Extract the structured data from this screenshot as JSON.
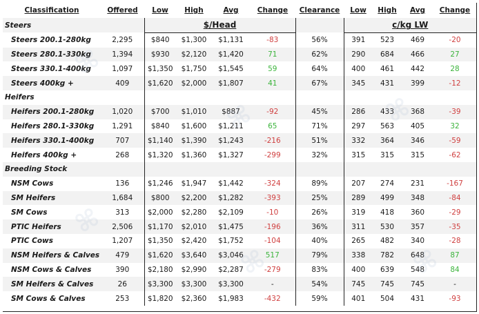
{
  "headers": {
    "classification": "Classification",
    "offered": "Offered",
    "low": "Low",
    "high": "High",
    "avg": "Avg",
    "change": "Change",
    "clearance": "Clearance",
    "low2": "Low",
    "high2": "High",
    "avg2": "Avg",
    "change2": "Change"
  },
  "units": {
    "head": "$/Head",
    "kg": "c/kg LW"
  },
  "sections": [
    {
      "title": "Steers",
      "rows": [
        {
          "name": "Steers 200.1-280kg",
          "offered": "2,295",
          "low": "$840",
          "high": "$1,300",
          "avg": "$1,131",
          "change": "-83",
          "clearance": "56%",
          "low2": "391",
          "high2": "523",
          "avg2": "469",
          "change2": "-20"
        },
        {
          "name": "Steers 280.1-330kg",
          "offered": "1,394",
          "low": "$930",
          "high": "$2,120",
          "avg": "$1,420",
          "change": "71",
          "clearance": "62%",
          "low2": "290",
          "high2": "684",
          "avg2": "466",
          "change2": "27"
        },
        {
          "name": "Steers 330.1-400kg",
          "offered": "1,097",
          "low": "$1,350",
          "high": "$1,750",
          "avg": "$1,545",
          "change": "59",
          "clearance": "64%",
          "low2": "400",
          "high2": "461",
          "avg2": "442",
          "change2": "28"
        },
        {
          "name": "Steers 400kg +",
          "offered": "409",
          "low": "$1,620",
          "high": "$2,000",
          "avg": "$1,807",
          "change": "41",
          "clearance": "67%",
          "low2": "345",
          "high2": "431",
          "avg2": "399",
          "change2": "-12"
        }
      ]
    },
    {
      "title": "Heifers",
      "rows": [
        {
          "name": "Heifers 200.1-280kg",
          "offered": "1,020",
          "low": "$700",
          "high": "$1,010",
          "avg": "$887",
          "change": "-92",
          "clearance": "45%",
          "low2": "286",
          "high2": "433",
          "avg2": "368",
          "change2": "-39"
        },
        {
          "name": "Heifers 280.1-330kg",
          "offered": "1,291",
          "low": "$840",
          "high": "$1,600",
          "avg": "$1,211",
          "change": "65",
          "clearance": "71%",
          "low2": "297",
          "high2": "563",
          "avg2": "405",
          "change2": "32"
        },
        {
          "name": "Heifers 330.1-400kg",
          "offered": "707",
          "low": "$1,140",
          "high": "$1,390",
          "avg": "$1,243",
          "change": "-216",
          "clearance": "51%",
          "low2": "332",
          "high2": "364",
          "avg2": "346",
          "change2": "-59"
        },
        {
          "name": "Heifers 400kg +",
          "offered": "268",
          "low": "$1,320",
          "high": "$1,360",
          "avg": "$1,327",
          "change": "-299",
          "clearance": "32%",
          "low2": "315",
          "high2": "315",
          "avg2": "315",
          "change2": "-62"
        }
      ]
    },
    {
      "title": "Breeding Stock",
      "rows": [
        {
          "name": "NSM Cows",
          "offered": "136",
          "low": "$1,246",
          "high": "$1,947",
          "avg": "$1,442",
          "change": "-324",
          "clearance": "89%",
          "low2": "207",
          "high2": "274",
          "avg2": "231",
          "change2": "-167"
        },
        {
          "name": "SM Heifers",
          "offered": "1,684",
          "low": "$800",
          "high": "$2,200",
          "avg": "$1,282",
          "change": "-393",
          "clearance": "25%",
          "low2": "289",
          "high2": "499",
          "avg2": "348",
          "change2": "-84"
        },
        {
          "name": "SM Cows",
          "offered": "313",
          "low": "$2,000",
          "high": "$2,280",
          "avg": "$2,109",
          "change": "-10",
          "clearance": "26%",
          "low2": "319",
          "high2": "418",
          "avg2": "360",
          "change2": "-29"
        },
        {
          "name": "PTIC Heifers",
          "offered": "2,506",
          "low": "$1,170",
          "high": "$2,010",
          "avg": "$1,475",
          "change": "-196",
          "clearance": "36%",
          "low2": "311",
          "high2": "530",
          "avg2": "357",
          "change2": "-35"
        },
        {
          "name": "PTIC Cows",
          "offered": "1,207",
          "low": "$1,350",
          "high": "$2,420",
          "avg": "$1,752",
          "change": "-104",
          "clearance": "40%",
          "low2": "265",
          "high2": "482",
          "avg2": "340",
          "change2": "-28"
        },
        {
          "name": "NSM Heifers & Calves",
          "offered": "479",
          "low": "$1,620",
          "high": "$3,640",
          "avg": "$3,046",
          "change": "517",
          "clearance": "79%",
          "low2": "338",
          "high2": "782",
          "avg2": "648",
          "change2": "87"
        },
        {
          "name": "NSM Cows & Calves",
          "offered": "390",
          "low": "$2,180",
          "high": "$2,990",
          "avg": "$2,287",
          "change": "-279",
          "clearance": "83%",
          "low2": "400",
          "high2": "639",
          "avg2": "548",
          "change2": "84"
        },
        {
          "name": "SM Heifers & Calves",
          "offered": "26",
          "low": "$3,300",
          "high": "$3,300",
          "avg": "$3,300",
          "change": "-",
          "clearance": "54%",
          "low2": "745",
          "high2": "745",
          "avg2": "745",
          "change2": "-"
        },
        {
          "name": "SM Cows & Calves",
          "offered": "253",
          "low": "$1,820",
          "high": "$2,360",
          "avg": "$1,983",
          "change": "-432",
          "clearance": "59%",
          "low2": "401",
          "high2": "504",
          "avg2": "431",
          "change2": "-93"
        }
      ]
    }
  ]
}
